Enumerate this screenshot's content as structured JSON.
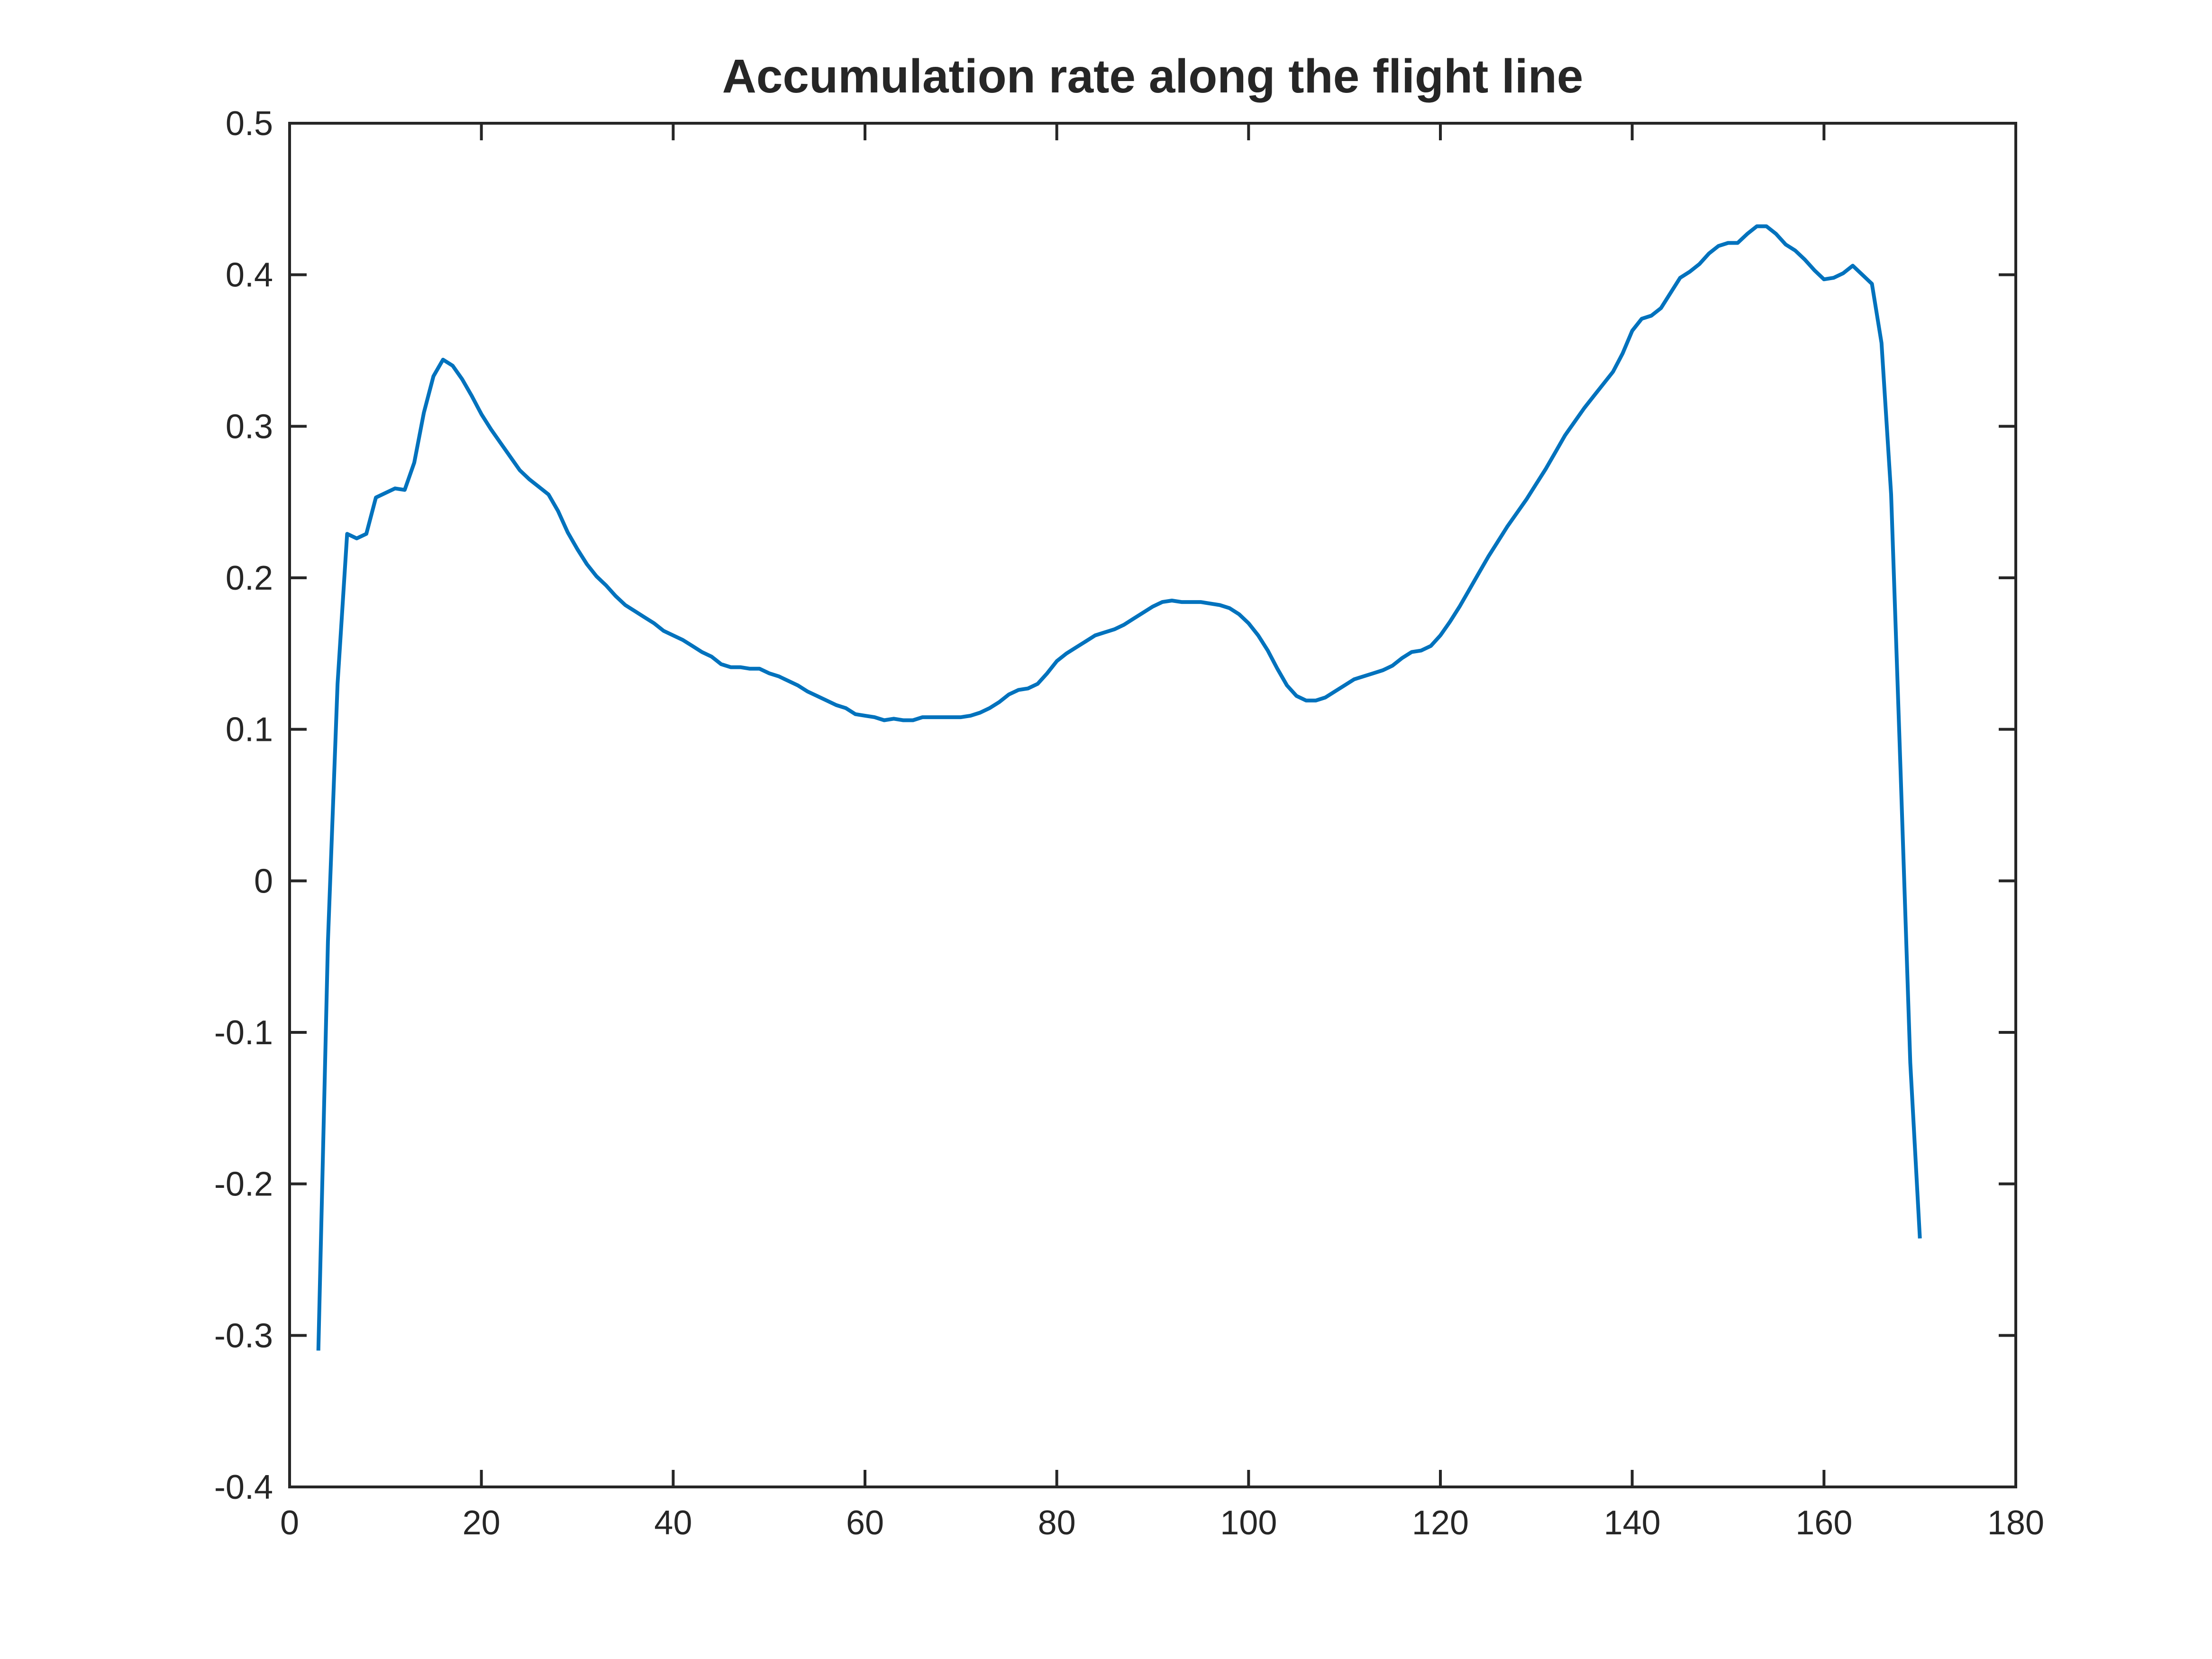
{
  "chart_data": {
    "type": "line",
    "title": "Accumulation rate along the flight line",
    "xlabel": "",
    "ylabel": "",
    "xlim": [
      0,
      180
    ],
    "ylim": [
      -0.4,
      0.5
    ],
    "xticks": [
      0,
      20,
      40,
      60,
      80,
      100,
      120,
      140,
      160,
      180
    ],
    "xtick_labels": [
      "0",
      "20",
      "40",
      "60",
      "80",
      "100",
      "120",
      "140",
      "160",
      "180"
    ],
    "yticks": [
      -0.4,
      -0.3,
      -0.2,
      -0.1,
      0,
      0.1,
      0.2,
      0.3,
      0.4,
      0.5
    ],
    "ytick_labels": [
      "-0.4",
      "-0.3",
      "-0.2",
      "-0.1",
      "0",
      "0.1",
      "0.2",
      "0.3",
      "0.4",
      "0.5"
    ],
    "grid": false,
    "legend": "none",
    "line_color": "#0072BD",
    "series": [
      {
        "x": [
          3,
          4,
          5,
          6,
          7,
          8,
          9,
          10,
          11,
          12,
          13,
          14,
          15,
          16,
          17,
          18,
          19,
          20,
          21,
          22,
          23,
          24,
          25,
          26,
          27,
          28,
          29,
          30,
          31,
          32,
          33,
          34,
          35,
          36,
          37,
          38,
          39,
          40,
          41,
          42,
          43,
          44,
          45,
          46,
          47,
          48,
          49,
          50,
          51,
          52,
          53,
          54,
          55,
          56,
          57,
          58,
          59,
          60,
          61,
          62,
          63,
          64,
          65,
          66,
          67,
          68,
          69,
          70,
          71,
          72,
          73,
          74,
          75,
          76,
          77,
          78,
          79,
          80,
          81,
          82,
          83,
          84,
          85,
          86,
          87,
          88,
          89,
          90,
          91,
          92,
          93,
          94,
          95,
          96,
          97,
          98,
          99,
          100,
          101,
          102,
          103,
          104,
          105,
          106,
          107,
          108,
          109,
          110,
          111,
          112,
          113,
          114,
          115,
          116,
          117,
          118,
          119,
          120,
          121,
          122,
          123,
          124,
          125,
          126,
          127,
          128,
          129,
          130,
          131,
          132,
          133,
          134,
          135,
          136,
          137,
          138,
          139,
          140,
          141,
          142,
          143,
          144,
          145,
          146,
          147,
          148,
          149,
          150,
          151,
          152,
          153,
          154,
          155,
          156,
          157,
          158,
          159,
          160,
          161,
          162,
          163,
          164,
          165,
          166,
          167,
          168,
          169,
          170
        ],
        "y": [
          -0.31,
          -0.04,
          0.13,
          0.229,
          0.226,
          0.229,
          0.253,
          0.256,
          0.259,
          0.258,
          0.276,
          0.309,
          0.333,
          0.344,
          0.34,
          0.331,
          0.32,
          0.308,
          0.298,
          0.289,
          0.28,
          0.271,
          0.265,
          0.26,
          0.255,
          0.244,
          0.23,
          0.219,
          0.209,
          0.201,
          0.195,
          0.188,
          0.182,
          0.178,
          0.174,
          0.17,
          0.165,
          0.162,
          0.159,
          0.155,
          0.151,
          0.148,
          0.143,
          0.141,
          0.141,
          0.14,
          0.14,
          0.137,
          0.135,
          0.132,
          0.129,
          0.125,
          0.122,
          0.119,
          0.116,
          0.114,
          0.11,
          0.109,
          0.108,
          0.106,
          0.107,
          0.106,
          0.106,
          0.108,
          0.108,
          0.108,
          0.108,
          0.108,
          0.109,
          0.111,
          0.114,
          0.118,
          0.123,
          0.126,
          0.127,
          0.13,
          0.137,
          0.145,
          0.15,
          0.154,
          0.158,
          0.162,
          0.164,
          0.166,
          0.169,
          0.173,
          0.177,
          0.181,
          0.184,
          0.185,
          0.184,
          0.184,
          0.184,
          0.183,
          0.182,
          0.18,
          0.176,
          0.17,
          0.162,
          0.152,
          0.14,
          0.129,
          0.122,
          0.119,
          0.119,
          0.121,
          0.125,
          0.129,
          0.133,
          0.135,
          0.137,
          0.139,
          0.142,
          0.147,
          0.151,
          0.152,
          0.155,
          0.162,
          0.171,
          0.181,
          0.192,
          0.203,
          0.214,
          0.224,
          0.234,
          0.243,
          0.252,
          0.262,
          0.272,
          0.283,
          0.294,
          0.303,
          0.312,
          0.32,
          0.328,
          0.336,
          0.348,
          0.363,
          0.371,
          0.373,
          0.378,
          0.388,
          0.398,
          0.402,
          0.407,
          0.414,
          0.419,
          0.421,
          0.421,
          0.427,
          0.432,
          0.432,
          0.427,
          0.42,
          0.416,
          0.41,
          0.403,
          0.397,
          0.398,
          0.401,
          0.406,
          0.4,
          0.394,
          0.355,
          0.255,
          0.07,
          -0.12,
          -0.236
        ]
      }
    ]
  }
}
